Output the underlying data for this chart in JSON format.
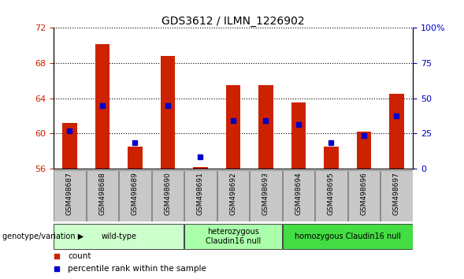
{
  "title": "GDS3612 / ILMN_1226902",
  "samples": [
    "GSM498687",
    "GSM498688",
    "GSM498689",
    "GSM498690",
    "GSM498691",
    "GSM498692",
    "GSM498693",
    "GSM498694",
    "GSM498695",
    "GSM498696",
    "GSM498697"
  ],
  "red_values": [
    61.2,
    70.2,
    58.5,
    68.8,
    56.2,
    65.5,
    65.5,
    63.5,
    58.5,
    60.2,
    64.5
  ],
  "blue_values": [
    60.3,
    63.2,
    59.0,
    63.2,
    57.4,
    61.5,
    61.5,
    61.0,
    59.0,
    59.8,
    62.0
  ],
  "ymin": 56,
  "ymax": 72,
  "yticks_left": [
    56,
    60,
    64,
    68,
    72
  ],
  "yticks_right": [
    0,
    25,
    50,
    75,
    100
  ],
  "right_tick_labels": [
    "0",
    "25",
    "50",
    "75",
    "100%"
  ],
  "bar_color": "#cc2200",
  "dot_color": "#0000cc",
  "grid_color": "#000000",
  "groups": [
    {
      "label": "wild-type",
      "start": 0,
      "end": 3,
      "color": "#ccffcc"
    },
    {
      "label": "heterozygous\nClaudin16 null",
      "start": 4,
      "end": 6,
      "color": "#aaffaa"
    },
    {
      "label": "homozygous Claudin16 null",
      "start": 7,
      "end": 10,
      "color": "#44dd44"
    }
  ],
  "group_label": "genotype/variation",
  "legend_count": "count",
  "legend_percentile": "percentile rank within the sample",
  "tick_label_color": "#333333",
  "bg_plot": "#ffffff",
  "bg_sample_row": "#c8c8c8"
}
